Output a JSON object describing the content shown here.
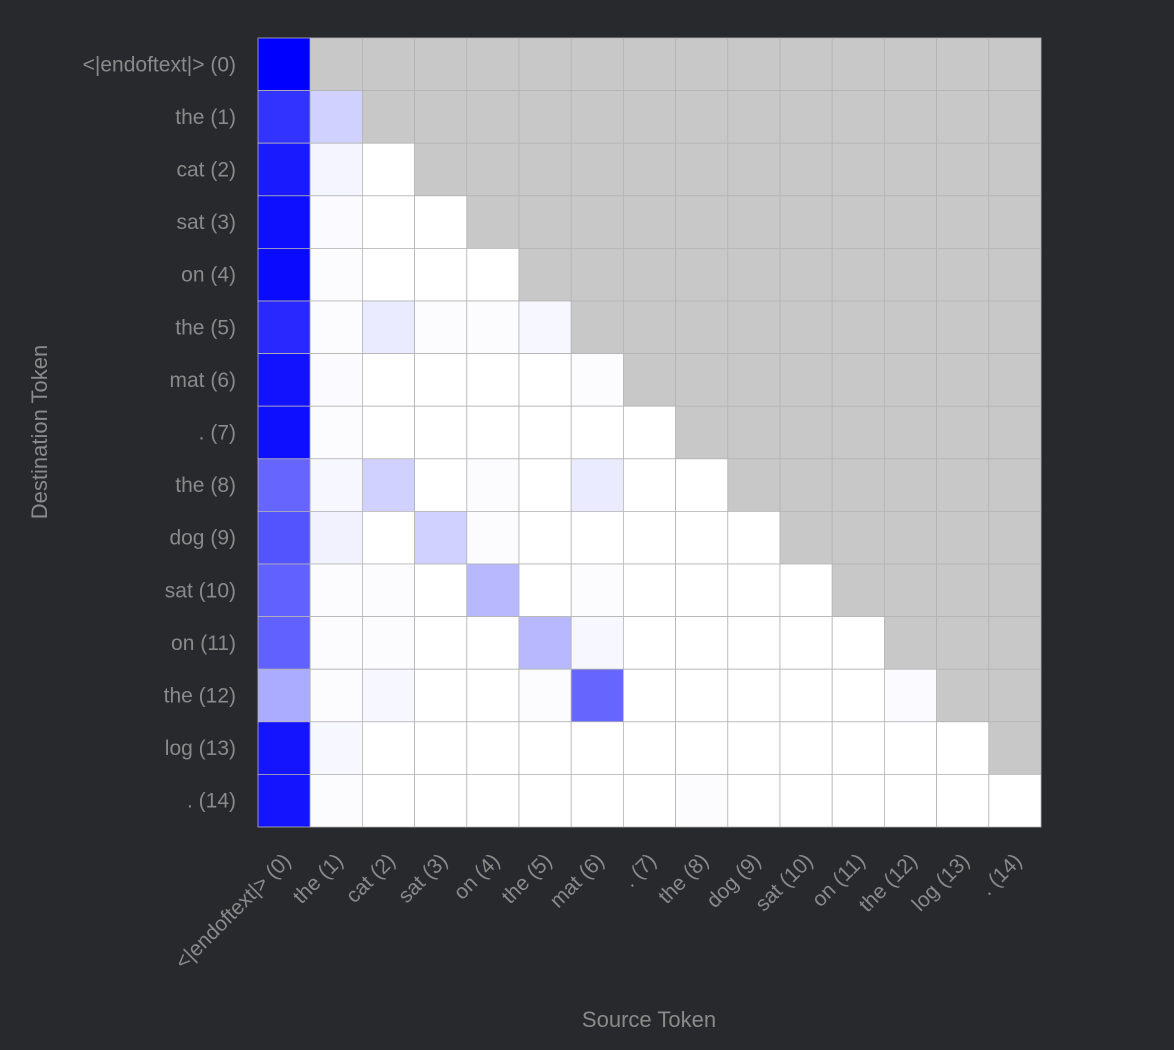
{
  "chart_data": {
    "type": "heatmap",
    "title": "",
    "xlabel": "Source Token",
    "ylabel": "Destination Token",
    "x_tokens": [
      "<|endoftext|> (0)",
      "the (1)",
      "cat (2)",
      "sat (3)",
      "on (4)",
      "the (5)",
      "mat (6)",
      ". (7)",
      "the (8)",
      "dog (9)",
      "sat (10)",
      "on (11)",
      "the (12)",
      "log (13)",
      ". (14)"
    ],
    "y_tokens": [
      "<|endoftext|> (0)",
      "the (1)",
      "cat (2)",
      "sat (3)",
      "on (4)",
      "the (5)",
      "mat (6)",
      ". (7)",
      "the (8)",
      "dog (9)",
      "sat (10)",
      "on (11)",
      "the (12)",
      "log (13)",
      ". (14)"
    ],
    "value_range": [
      0,
      1
    ],
    "masked_region": "upper-triangle",
    "values": [
      [
        1.0
      ],
      [
        0.8,
        0.18
      ],
      [
        0.9,
        0.04,
        0.0
      ],
      [
        0.94,
        0.02,
        0.0,
        0.0
      ],
      [
        0.96,
        0.01,
        0.0,
        0.0,
        0.0
      ],
      [
        0.84,
        0.01,
        0.08,
        0.01,
        0.01,
        0.03
      ],
      [
        0.93,
        0.02,
        0.0,
        0.0,
        0.0,
        0.0,
        0.01
      ],
      [
        0.94,
        0.01,
        0.0,
        0.0,
        0.0,
        0.0,
        0.0,
        0.0
      ],
      [
        0.6,
        0.03,
        0.18,
        0.0,
        0.01,
        0.0,
        0.08,
        0.0,
        0.0
      ],
      [
        0.67,
        0.05,
        0.0,
        0.18,
        0.01,
        0.0,
        0.0,
        0.0,
        0.0,
        0.0
      ],
      [
        0.62,
        0.01,
        0.01,
        0.0,
        0.28,
        0.0,
        0.01,
        0.0,
        0.0,
        0.0,
        0.0
      ],
      [
        0.62,
        0.01,
        0.01,
        0.0,
        0.0,
        0.28,
        0.03,
        0.0,
        0.0,
        0.0,
        0.0,
        0.0
      ],
      [
        0.33,
        0.01,
        0.03,
        0.0,
        0.0,
        0.01,
        0.6,
        0.0,
        0.0,
        0.0,
        0.0,
        0.0,
        0.02
      ],
      [
        0.92,
        0.03,
        0.0,
        0.0,
        0.0,
        0.0,
        0.0,
        0.0,
        0.0,
        0.0,
        0.0,
        0.0,
        0.0,
        0.0
      ],
      [
        0.92,
        0.01,
        0.0,
        0.0,
        0.0,
        0.0,
        0.0,
        0.0,
        0.01,
        0.0,
        0.0,
        0.0,
        0.0,
        0.0,
        0.0
      ]
    ],
    "color_low": "#ffffff",
    "color_high": "#0000ff",
    "color_masked": "#c8c8c8",
    "grid_color": "#b4b4b4"
  }
}
